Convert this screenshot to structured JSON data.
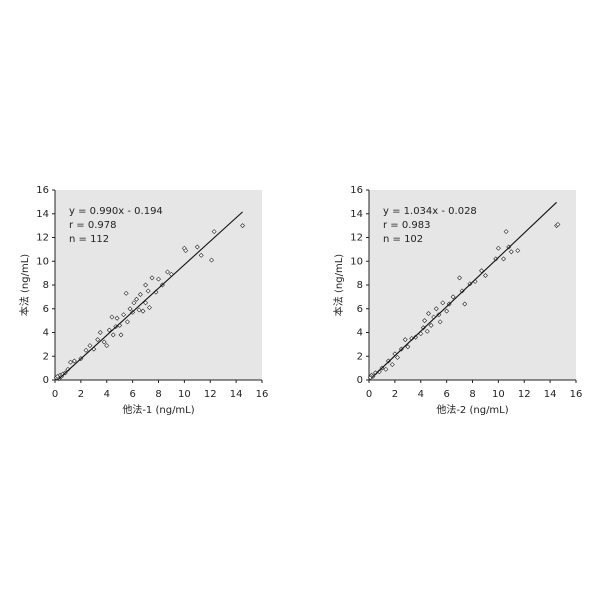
{
  "chart_data": [
    {
      "type": "scatter",
      "xlabel": "他法-1 (ng/mL)",
      "ylabel": "本法 (ng/mL)",
      "annotations": [
        "y = 0.990x - 0.194",
        "r = 0.978",
        "n = 112"
      ],
      "x": [
        0.1,
        0.2,
        0.3,
        0.4,
        0.5,
        0.6,
        0.8,
        1.0,
        1.2,
        1.5,
        2.0,
        2.4,
        2.7,
        3.0,
        3.3,
        3.5,
        3.8,
        4.0,
        4.2,
        4.4,
        4.5,
        4.7,
        4.8,
        5.0,
        5.1,
        5.3,
        5.5,
        5.6,
        5.8,
        6.0,
        6.1,
        6.3,
        6.5,
        6.6,
        6.8,
        7.0,
        7.0,
        7.2,
        7.3,
        7.5,
        7.8,
        8.0,
        8.3,
        8.7,
        9.0,
        10.0,
        10.1,
        11.0,
        11.3,
        12.1,
        12.3,
        14.5
      ],
      "y": [
        0.2,
        0.3,
        0.1,
        0.4,
        0.3,
        0.5,
        0.6,
        0.9,
        1.5,
        1.6,
        1.8,
        2.5,
        2.9,
        2.6,
        3.4,
        4.0,
        3.2,
        2.9,
        4.2,
        5.3,
        3.8,
        4.5,
        5.2,
        4.6,
        3.8,
        5.5,
        7.3,
        4.9,
        6.0,
        5.7,
        6.5,
        6.8,
        5.9,
        7.2,
        5.8,
        6.5,
        8.0,
        7.5,
        6.1,
        8.6,
        7.4,
        8.5,
        8.0,
        9.1,
        8.9,
        11.1,
        10.9,
        11.2,
        10.5,
        10.1,
        12.5,
        13.0
      ],
      "fit_x": [
        0.2,
        14.5
      ],
      "fit_y": [
        0.004,
        14.16
      ],
      "xlim": [
        0,
        16
      ],
      "ylim": [
        0,
        16
      ],
      "xticks": [
        0,
        2,
        4,
        6,
        8,
        10,
        12,
        14,
        16
      ],
      "yticks": [
        0,
        2,
        4,
        6,
        8,
        10,
        12,
        14,
        16
      ]
    },
    {
      "type": "scatter",
      "xlabel": "他法-2 (ng/mL)",
      "ylabel": "本法 (ng/mL)",
      "annotations": [
        "y = 1.034x - 0.028",
        "r = 0.983",
        "n = 102"
      ],
      "x": [
        0.1,
        0.2,
        0.3,
        0.5,
        0.8,
        1.0,
        1.3,
        1.5,
        1.8,
        2.0,
        2.2,
        2.5,
        2.8,
        3.0,
        3.3,
        3.6,
        4.0,
        4.2,
        4.3,
        4.5,
        4.6,
        4.8,
        5.0,
        5.2,
        5.4,
        5.5,
        5.7,
        6.0,
        6.2,
        6.5,
        7.0,
        7.2,
        7.4,
        7.8,
        8.2,
        8.7,
        9.0,
        9.8,
        10.0,
        10.4,
        10.6,
        10.8,
        11.0,
        11.5,
        14.5,
        14.6
      ],
      "y": [
        0.2,
        0.4,
        0.3,
        0.6,
        0.7,
        1.0,
        0.9,
        1.6,
        1.3,
        2.2,
        1.9,
        2.6,
        3.4,
        2.8,
        3.5,
        3.6,
        3.9,
        4.4,
        5.0,
        4.1,
        5.6,
        4.6,
        5.3,
        6.0,
        5.5,
        4.9,
        6.5,
        5.8,
        6.4,
        7.0,
        8.6,
        7.5,
        6.4,
        8.1,
        8.3,
        9.2,
        8.8,
        10.2,
        11.1,
        10.2,
        12.5,
        11.2,
        10.8,
        10.9,
        13.0,
        13.1
      ],
      "fit_x": [
        0.2,
        14.5
      ],
      "fit_y": [
        0.179,
        14.965
      ],
      "xlim": [
        0,
        16
      ],
      "ylim": [
        0,
        16
      ],
      "xticks": [
        0,
        2,
        4,
        6,
        8,
        10,
        12,
        14,
        16
      ],
      "yticks": [
        0,
        2,
        4,
        6,
        8,
        10,
        12,
        14,
        16
      ]
    }
  ]
}
